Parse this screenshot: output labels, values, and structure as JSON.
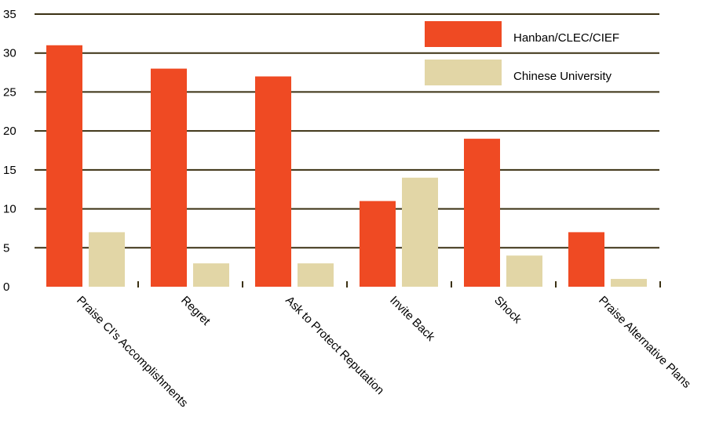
{
  "chart_data": {
    "type": "bar",
    "title": "",
    "xlabel": "",
    "ylabel": "",
    "ylim": [
      0,
      35
    ],
    "yticks": [
      0,
      5,
      10,
      15,
      20,
      25,
      30,
      35
    ],
    "grid": true,
    "legend_position": "top-right",
    "categories": [
      "Praise CI's Accomplishments",
      "Regret",
      "Ask to Protect Reputation",
      "Invite Back",
      "Shock",
      "Praise Alternative Plans"
    ],
    "series": [
      {
        "name": "Hanban/CLEC/CIEF",
        "color": "#ef4a23",
        "values": [
          31,
          28,
          27,
          11,
          19,
          7
        ]
      },
      {
        "name": "Chinese University",
        "color": "#e2d6a6",
        "values": [
          7,
          3,
          3,
          14,
          4,
          1
        ]
      }
    ],
    "grid_color": "#3b3113"
  }
}
